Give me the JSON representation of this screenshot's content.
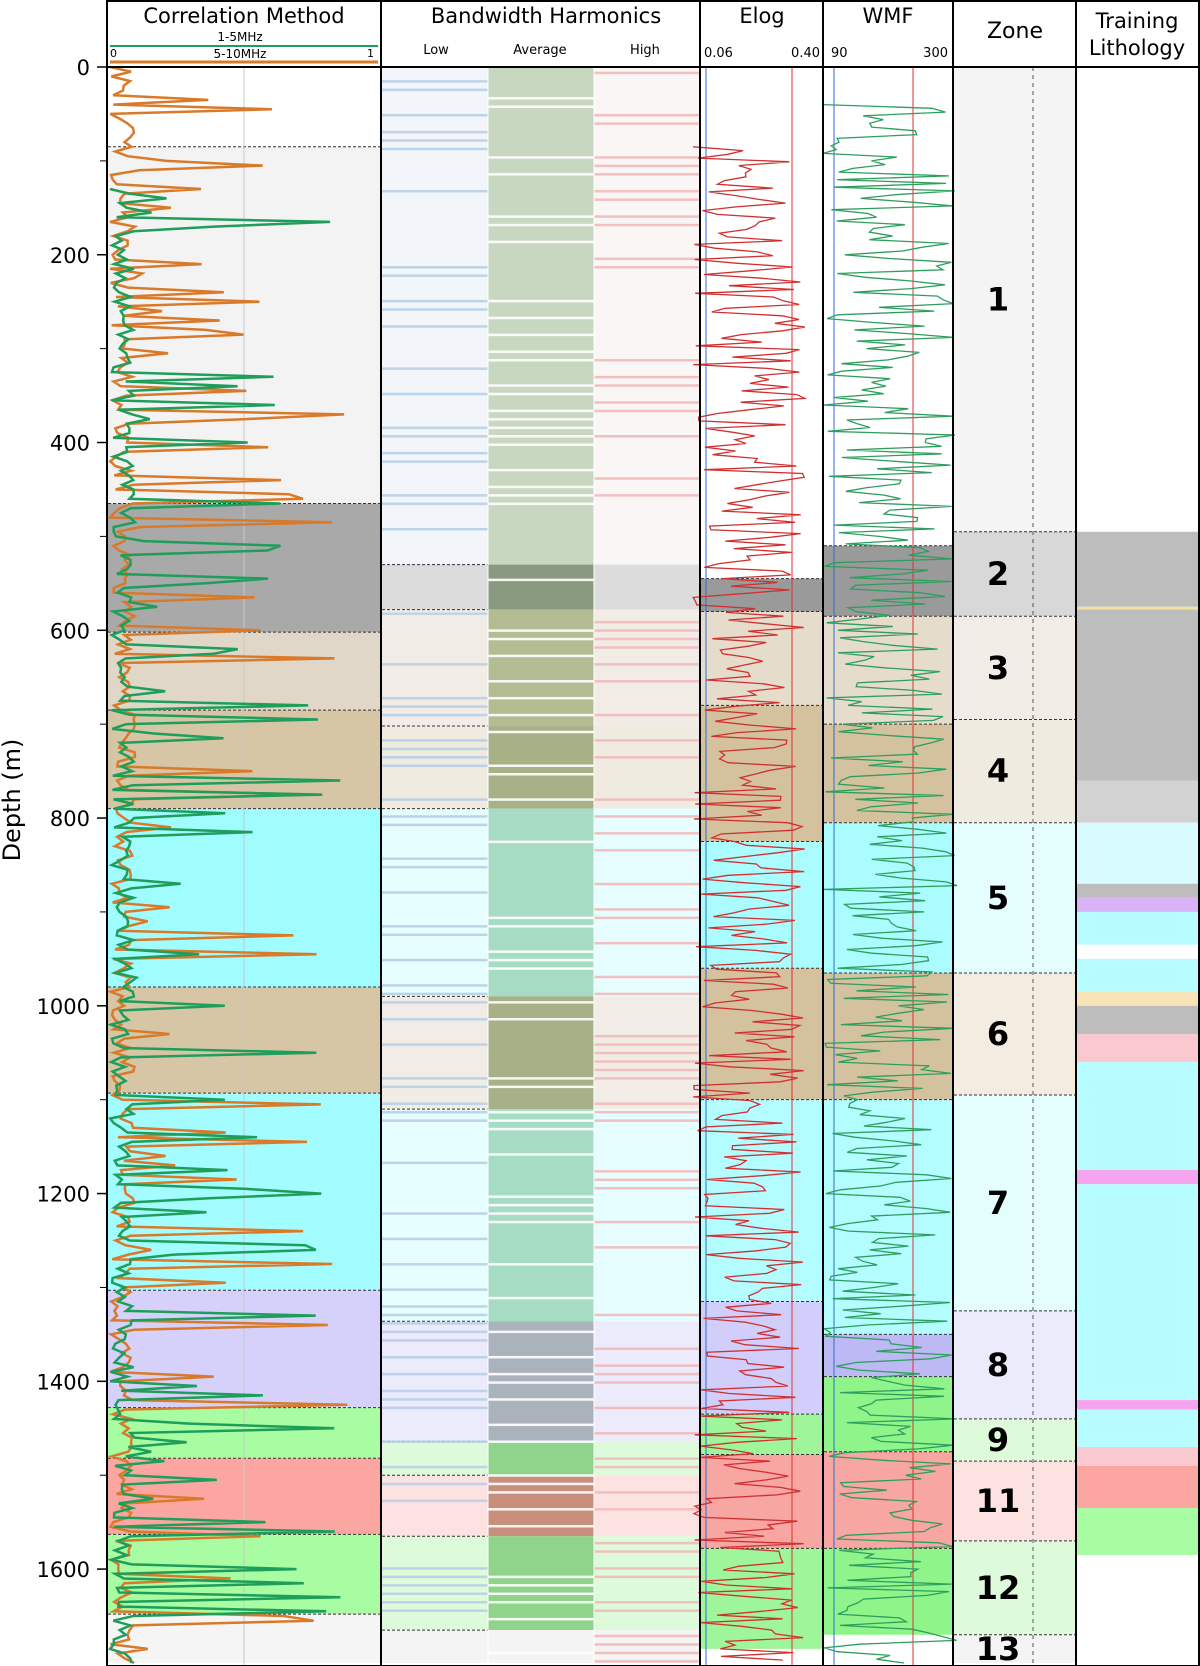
{
  "chart_data": {
    "type": "well-log",
    "depth_axis": {
      "label": "Depth (m)",
      "ticks": [
        0,
        200,
        400,
        600,
        800,
        1000,
        1200,
        1400,
        1600
      ],
      "minor_ticks": [
        100,
        300,
        500,
        700,
        900,
        1100,
        1300,
        1500
      ],
      "range": [
        0,
        1700
      ]
    },
    "tracks": [
      {
        "title": "Correlation Method",
        "scale_labels": [
          "1-5MHz",
          "5-10MHz",
          "0",
          "1"
        ],
        "series": [
          {
            "name": "1-5MHz",
            "color": "#1e9e5a"
          },
          {
            "name": "5-10MHz",
            "color": "#d97a2b"
          }
        ]
      },
      {
        "title": "Bandwidth Harmonics",
        "columns": [
          "Low",
          "Average",
          "High"
        ]
      },
      {
        "title": "Elog",
        "scale_min": "0.06",
        "scale_max": "0.40",
        "color": "#d03030"
      },
      {
        "title": "WMF",
        "scale_min": "90",
        "scale_max": "300",
        "color": "#2e9e5e"
      },
      {
        "title": "Zone"
      },
      {
        "title_line1": "Training",
        "title_line2": "Lithology"
      }
    ],
    "zones": [
      {
        "label": "1",
        "top": 0,
        "bottom": 495,
        "color": "#f4f4f4"
      },
      {
        "label": "2",
        "top": 495,
        "bottom": 585,
        "color": "#d8d8d8"
      },
      {
        "label": "3",
        "top": 585,
        "bottom": 695,
        "color": "#f1ede6"
      },
      {
        "label": "4",
        "top": 695,
        "bottom": 805,
        "color": "#f0ebe0"
      },
      {
        "label": "5",
        "top": 805,
        "bottom": 965,
        "color": "#e4feff"
      },
      {
        "label": "6",
        "top": 965,
        "bottom": 1095,
        "color": "#f2ece1"
      },
      {
        "label": "7",
        "top": 1095,
        "bottom": 1325,
        "color": "#e4feff"
      },
      {
        "label": "8",
        "top": 1325,
        "bottom": 1440,
        "color": "#ecebfb"
      },
      {
        "label": "9",
        "top": 1440,
        "bottom": 1485,
        "color": "#ddfadb"
      },
      {
        "label": "11",
        "top": 1485,
        "bottom": 1570,
        "color": "#fde2e2"
      },
      {
        "label": "12",
        "top": 1570,
        "bottom": 1670,
        "color": "#ddfadb"
      },
      {
        "label": "13",
        "top": 1670,
        "bottom": 1700,
        "color": "#f4f4f4"
      }
    ],
    "correlation_intervals": [
      {
        "top": 85,
        "bottom": 465,
        "color": "#f3f3f3"
      },
      {
        "top": 465,
        "bottom": 602,
        "color": "#a9a9a9"
      },
      {
        "top": 602,
        "bottom": 685,
        "color": "#e0d7c8"
      },
      {
        "top": 685,
        "bottom": 790,
        "color": "#d6c6a6"
      },
      {
        "top": 790,
        "bottom": 980,
        "color": "#9ffcff"
      },
      {
        "top": 980,
        "bottom": 1093,
        "color": "#d6c6a6"
      },
      {
        "top": 1093,
        "bottom": 1303,
        "color": "#a3fcff"
      },
      {
        "top": 1303,
        "bottom": 1428,
        "color": "#d5d1fb"
      },
      {
        "top": 1428,
        "bottom": 1482,
        "color": "#a8fca2"
      },
      {
        "top": 1482,
        "bottom": 1563,
        "color": "#fba6a0"
      },
      {
        "top": 1563,
        "bottom": 1648,
        "color": "#a8fca2"
      },
      {
        "top": 1648,
        "bottom": 1700,
        "color": "#f5f5f5"
      }
    ],
    "bandwidth_intervals": [
      {
        "top": 0,
        "bottom": 530,
        "low": "#f2f6fb",
        "avg": "#c8d8c0",
        "high": "#faf6f6"
      },
      {
        "top": 530,
        "bottom": 578,
        "low": "#dcdcdc",
        "avg": "#8a9a80",
        "high": "#dcdcdc"
      },
      {
        "top": 578,
        "bottom": 702,
        "low": "#f1ede6",
        "avg": "#b4bc94",
        "high": "#f1ede6"
      },
      {
        "top": 702,
        "bottom": 790,
        "low": "#f0ebe0",
        "avg": "#a8b088",
        "high": "#f0ebe0"
      },
      {
        "top": 790,
        "bottom": 990,
        "low": "#e6feff",
        "avg": "#a6dcc4",
        "high": "#e6feff"
      },
      {
        "top": 990,
        "bottom": 1110,
        "low": "#f1ede6",
        "avg": "#a8b088",
        "high": "#f1ede6"
      },
      {
        "top": 1110,
        "bottom": 1336,
        "low": "#e6feff",
        "avg": "#a6dcc4",
        "high": "#e6feff"
      },
      {
        "top": 1336,
        "bottom": 1464,
        "low": "#ecebfb",
        "avg": "#aab2bc",
        "high": "#ecebfb"
      },
      {
        "top": 1464,
        "bottom": 1500,
        "low": "#ddfadb",
        "avg": "#8fd48a",
        "high": "#ddfadb"
      },
      {
        "top": 1500,
        "bottom": 1565,
        "low": "#fde2e2",
        "avg": "#c8907c",
        "high": "#fde2e2"
      },
      {
        "top": 1565,
        "bottom": 1665,
        "low": "#ddfadb",
        "avg": "#8fd48a",
        "high": "#ddfadb"
      },
      {
        "top": 1665,
        "bottom": 1700,
        "low": "#f4f4f4",
        "avg": "#f4f4f4",
        "high": "#f4f4f4"
      }
    ],
    "elog_intervals": [
      {
        "top": 545,
        "bottom": 580,
        "color": "#9a9a9a"
      },
      {
        "top": 580,
        "bottom": 680,
        "color": "#e6dccb"
      },
      {
        "top": 680,
        "bottom": 825,
        "color": "#d4c29e"
      },
      {
        "top": 825,
        "bottom": 960,
        "color": "#aafcff"
      },
      {
        "top": 960,
        "bottom": 1100,
        "color": "#d4c29e"
      },
      {
        "top": 1100,
        "bottom": 1315,
        "color": "#b3fcff"
      },
      {
        "top": 1315,
        "bottom": 1435,
        "color": "#d2cefb"
      },
      {
        "top": 1435,
        "bottom": 1478,
        "color": "#9ef59a"
      },
      {
        "top": 1478,
        "bottom": 1578,
        "color": "#f7a6a2"
      },
      {
        "top": 1578,
        "bottom": 1685,
        "color": "#9ef59a"
      }
    ],
    "wmf_intervals": [
      {
        "top": 510,
        "bottom": 585,
        "color": "#9a9a9a"
      },
      {
        "top": 585,
        "bottom": 700,
        "color": "#e6dccb"
      },
      {
        "top": 700,
        "bottom": 805,
        "color": "#d4c29e"
      },
      {
        "top": 805,
        "bottom": 965,
        "color": "#aafcff"
      },
      {
        "top": 965,
        "bottom": 1100,
        "color": "#d4c29e"
      },
      {
        "top": 1100,
        "bottom": 1350,
        "color": "#b3fcff"
      },
      {
        "top": 1350,
        "bottom": 1395,
        "color": "#bdb9f5"
      },
      {
        "top": 1395,
        "bottom": 1475,
        "color": "#8ff58a"
      },
      {
        "top": 1475,
        "bottom": 1578,
        "color": "#f7a6a2"
      },
      {
        "top": 1578,
        "bottom": 1670,
        "color": "#8ff58a"
      }
    ],
    "lithology_intervals": [
      {
        "top": 495,
        "bottom": 575,
        "color": "#bdbdbd"
      },
      {
        "top": 575,
        "bottom": 578,
        "color": "#f5e09a"
      },
      {
        "top": 578,
        "bottom": 760,
        "color": "#bdbdbd"
      },
      {
        "top": 760,
        "bottom": 805,
        "color": "#d2d2d2"
      },
      {
        "top": 805,
        "bottom": 870,
        "color": "#d8fbff"
      },
      {
        "top": 870,
        "bottom": 885,
        "color": "#bdbdbd"
      },
      {
        "top": 885,
        "bottom": 900,
        "color": "#d8b4f6"
      },
      {
        "top": 900,
        "bottom": 935,
        "color": "#b7fcff"
      },
      {
        "top": 935,
        "bottom": 950,
        "color": "#ffffff"
      },
      {
        "top": 950,
        "bottom": 985,
        "color": "#b7fcff"
      },
      {
        "top": 985,
        "bottom": 1000,
        "color": "#f7e3b5"
      },
      {
        "top": 1000,
        "bottom": 1030,
        "color": "#bdbdbd"
      },
      {
        "top": 1030,
        "bottom": 1060,
        "color": "#f9c9cf"
      },
      {
        "top": 1060,
        "bottom": 1175,
        "color": "#b7fcff"
      },
      {
        "top": 1175,
        "bottom": 1190,
        "color": "#f6a3f0"
      },
      {
        "top": 1190,
        "bottom": 1420,
        "color": "#b7fcff"
      },
      {
        "top": 1420,
        "bottom": 1430,
        "color": "#f6a3f0"
      },
      {
        "top": 1430,
        "bottom": 1470,
        "color": "#b7fcff"
      },
      {
        "top": 1470,
        "bottom": 1490,
        "color": "#f9c9cf"
      },
      {
        "top": 1490,
        "bottom": 1535,
        "color": "#fba6a0"
      },
      {
        "top": 1535,
        "bottom": 1585,
        "color": "#a8fca2"
      }
    ]
  }
}
